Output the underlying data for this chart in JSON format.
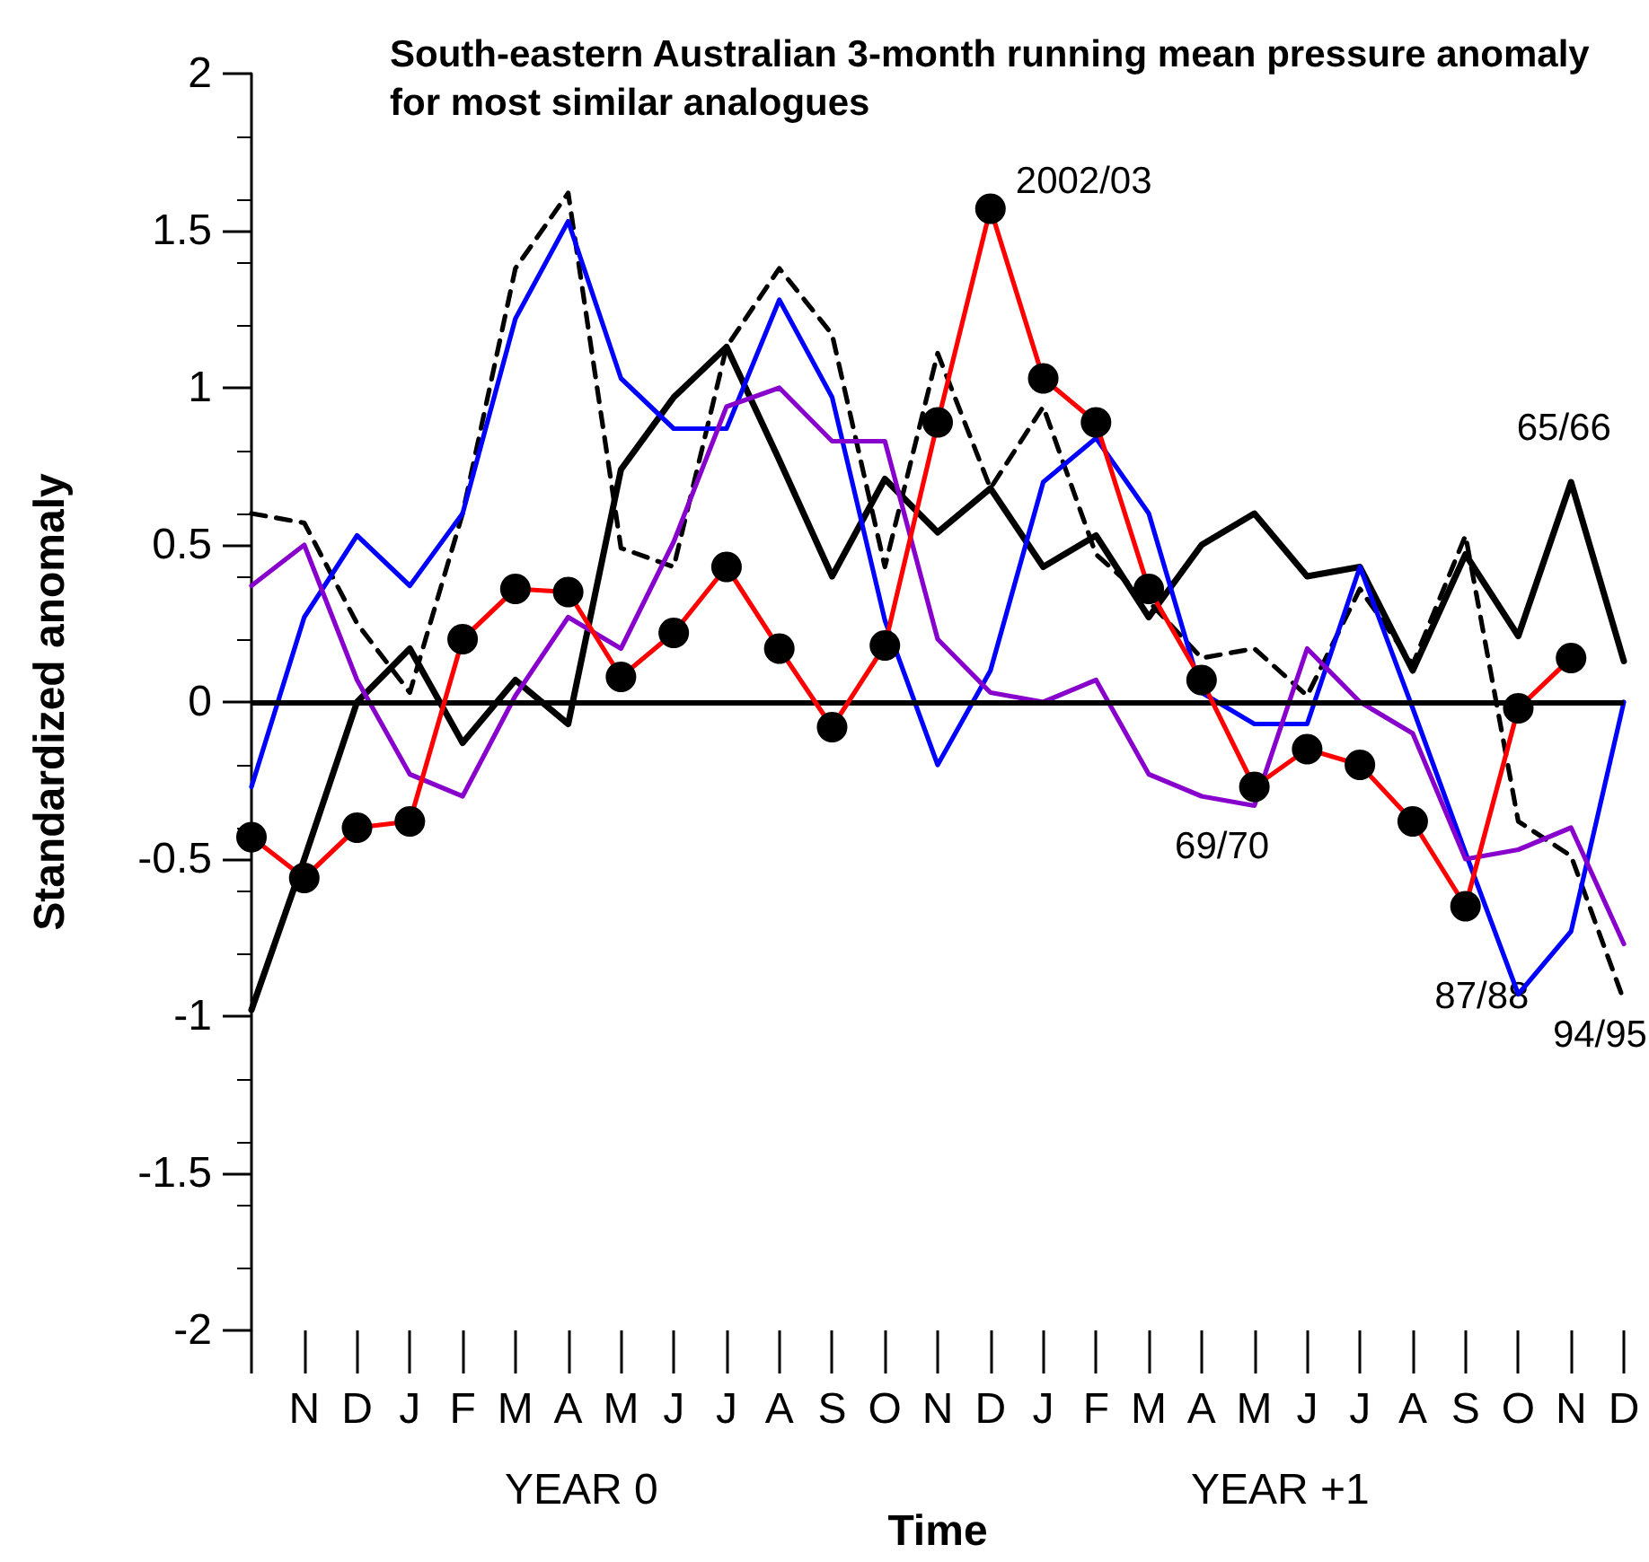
{
  "chart_data": {
    "type": "line",
    "title": "South-eastern Australian 3-month running mean pressure anomaly for most similar analogues",
    "xlabel": "Time",
    "ylabel": "Standardized anomaly",
    "categories": [
      null,
      "N",
      "D",
      "J",
      "F",
      "M",
      "A",
      "M",
      "J",
      "J",
      "A",
      "S",
      "O",
      "N",
      "D",
      "J",
      "F",
      "M",
      "A",
      "M",
      "J",
      "J",
      "A",
      "S",
      "O",
      "N",
      "D"
    ],
    "ylim": [
      -2,
      2
    ],
    "yticks": [
      -2,
      -1.5,
      -1,
      -0.5,
      0,
      0.5,
      1,
      1.5,
      2
    ],
    "grid": false,
    "legend": false,
    "series": [
      {
        "name": "65/66",
        "color": "#000000",
        "line_style": "solid",
        "marker": "none",
        "values": [
          -0.98,
          -0.5,
          0.0,
          0.17,
          -0.13,
          0.07,
          -0.07,
          0.74,
          0.97,
          1.13,
          0.77,
          0.4,
          0.71,
          0.54,
          0.68,
          0.43,
          0.53,
          0.27,
          0.5,
          0.6,
          0.4,
          0.43,
          0.1,
          0.47,
          0.21,
          0.7,
          0.13
        ]
      },
      {
        "name": "94/95",
        "color": "#000000",
        "line_style": "dashed",
        "marker": "none",
        "values": [
          0.6,
          0.57,
          0.25,
          0.03,
          0.6,
          1.38,
          1.62,
          0.49,
          0.43,
          1.13,
          1.38,
          1.17,
          0.43,
          1.11,
          0.68,
          0.94,
          0.47,
          0.32,
          0.14,
          0.17,
          0.02,
          0.36,
          0.12,
          0.53,
          -0.38,
          -0.49,
          -0.95
        ]
      },
      {
        "name": "87/88",
        "color": "#0000ff",
        "line_style": "solid",
        "marker": "none",
        "values": [
          -0.27,
          0.27,
          0.53,
          0.37,
          0.6,
          1.22,
          1.53,
          1.03,
          0.87,
          0.87,
          1.28,
          0.97,
          0.26,
          -0.2,
          0.1,
          0.7,
          0.84,
          0.6,
          0.03,
          -0.07,
          -0.07,
          0.43,
          -0.02,
          -0.48,
          -0.93,
          -0.73,
          0.0
        ]
      },
      {
        "name": "69/70",
        "color": "#8800cc",
        "line_style": "solid",
        "marker": "none",
        "values": [
          0.37,
          0.5,
          0.07,
          -0.23,
          -0.3,
          0.02,
          0.27,
          0.17,
          0.51,
          0.94,
          1.0,
          0.83,
          0.83,
          0.2,
          0.03,
          0.0,
          0.07,
          -0.23,
          -0.3,
          -0.33,
          0.17,
          0.0,
          -0.1,
          -0.5,
          -0.47,
          -0.4,
          -0.77
        ]
      },
      {
        "name": "2002/03",
        "color": "#ff0000",
        "line_style": "solid",
        "marker": "circle",
        "values": [
          -0.43,
          -0.56,
          -0.4,
          -0.38,
          0.2,
          0.36,
          0.35,
          0.08,
          0.22,
          0.43,
          0.17,
          -0.08,
          0.18,
          0.89,
          1.57,
          1.03,
          0.89,
          0.36,
          0.07,
          -0.27,
          -0.15,
          -0.2,
          -0.38,
          -0.65,
          -0.02,
          0.14,
          null
        ]
      }
    ],
    "ref_lines": [
      {
        "axis": "y",
        "value": 0,
        "color": "#000000",
        "line_style": "solid"
      }
    ],
    "annotations": [
      "YEAR 0",
      "YEAR +1"
    ]
  }
}
